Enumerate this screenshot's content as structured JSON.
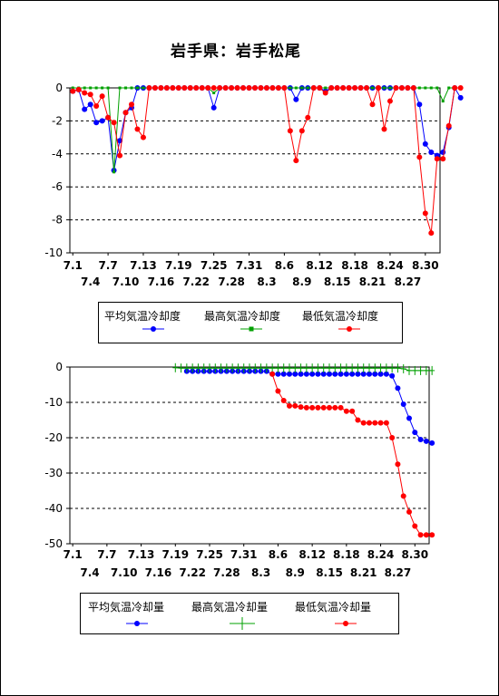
{
  "title": "岩手県：岩手松尾",
  "chart_data": [
    {
      "type": "line",
      "x_tick_labels_row1": [
        "7.1",
        "7.7",
        "7.13",
        "7.19",
        "7.25",
        "7.31",
        "8.6",
        "8.12",
        "8.18",
        "8.24",
        "8.30"
      ],
      "x_tick_labels_row2": [
        "7.4",
        "7.10",
        "7.16",
        "7.22",
        "7.28",
        "8.3",
        "8.9",
        "8.15",
        "8.21",
        "8.27"
      ],
      "ylim": [
        -10,
        0
      ],
      "yticks": [
        0,
        -2,
        -4,
        -6,
        -8,
        -10
      ],
      "grid": "horizontal-dashed",
      "legend_position": "bottom",
      "series": [
        {
          "name": "平均気温冷却度",
          "color": "#0000ff",
          "marker": "circle",
          "values": [
            -0.2,
            -0.1,
            -1.3,
            -1.0,
            -2.1,
            -2.0,
            -1.8,
            -5.0,
            -3.2,
            -1.5,
            -1.2,
            0,
            0,
            0,
            0,
            0,
            0,
            0,
            0,
            0,
            0,
            0,
            0,
            0,
            -1.2,
            0,
            0,
            0,
            0,
            0,
            0,
            0,
            0,
            0,
            0,
            0,
            0,
            0,
            -0.7,
            0,
            0,
            0,
            0,
            -0.2,
            0,
            0,
            0,
            0,
            0,
            0,
            0,
            0,
            0,
            0,
            0,
            0,
            0,
            0,
            0,
            -1.0,
            -3.4,
            -3.9,
            -4.1,
            -3.9,
            -2.4,
            0,
            -0.6
          ]
        },
        {
          "name": "最高気温冷却度",
          "color": "#00a000",
          "marker": "square",
          "values": [
            0,
            0,
            0,
            0,
            0,
            0,
            0,
            -5.1,
            0,
            0,
            0,
            0,
            0,
            0,
            0,
            0,
            0,
            0,
            0,
            0,
            0,
            0,
            0,
            0,
            -0.3,
            0,
            0,
            0,
            0,
            0,
            0,
            0,
            0,
            0,
            0,
            0,
            0,
            0,
            0,
            0,
            0,
            0,
            0,
            0,
            0,
            0,
            0,
            0,
            0,
            0,
            0,
            0,
            0,
            0,
            0,
            0,
            0,
            0,
            0,
            0,
            0,
            0,
            0,
            -0.8,
            0,
            0,
            0
          ]
        },
        {
          "name": "最低気温冷却度",
          "color": "#ff0000",
          "marker": "circle",
          "values": [
            -0.2,
            -0.1,
            -0.3,
            -0.4,
            -1.1,
            -0.5,
            -1.8,
            -2.1,
            -4.1,
            -1.5,
            -1.0,
            -2.5,
            -3.0,
            0,
            0,
            0,
            0,
            0,
            0,
            0,
            0,
            0,
            0,
            0,
            0,
            0,
            0,
            0,
            0,
            0,
            0,
            0,
            0,
            0,
            0,
            0,
            0,
            -2.6,
            -4.4,
            -2.6,
            -1.8,
            0,
            0,
            -0.3,
            0,
            0,
            0,
            0,
            0,
            0,
            0,
            -1.0,
            0,
            -2.5,
            -0.8,
            0,
            0,
            0,
            0,
            -4.2,
            -7.6,
            -8.8,
            -4.3,
            -4.3,
            -2.3,
            0,
            0
          ]
        }
      ]
    },
    {
      "type": "line",
      "x_tick_labels_row1": [
        "7.1",
        "7.7",
        "7.13",
        "7.19",
        "7.25",
        "7.31",
        "8.6",
        "8.12",
        "8.18",
        "8.24",
        "8.30"
      ],
      "x_tick_labels_row2": [
        "7.4",
        "7.10",
        "7.16",
        "7.22",
        "7.28",
        "8.3",
        "8.9",
        "8.15",
        "8.21",
        "8.27"
      ],
      "ylim": [
        -50,
        0
      ],
      "yticks": [
        0,
        -10,
        -20,
        -30,
        -40,
        -50
      ],
      "grid": "horizontal-dashed",
      "legend_position": "bottom",
      "series": [
        {
          "name": "平均気温冷却量",
          "color": "#0000ff",
          "marker": "circle",
          "values": [
            null,
            null,
            null,
            null,
            null,
            null,
            null,
            null,
            null,
            null,
            null,
            null,
            null,
            null,
            null,
            null,
            null,
            null,
            null,
            null,
            -1.2,
            -1.2,
            -1.2,
            -1.2,
            -1.2,
            -1.2,
            -1.2,
            -1.2,
            -1.2,
            -1.2,
            -1.2,
            -1.2,
            -1.2,
            -1.2,
            -1.2,
            -2.0,
            -2.0,
            -2.0,
            -2.0,
            -2.0,
            -2.0,
            -2.0,
            -2.0,
            -2.0,
            -2.0,
            -2.0,
            -2.0,
            -2.0,
            -2.0,
            -2.0,
            -2.0,
            -2.0,
            -2.0,
            -2.0,
            -2.0,
            -2.0,
            -2.5,
            -6.0,
            -10.5,
            -14.5,
            -18.5,
            -20.5,
            -21.0,
            -21.5
          ]
        },
        {
          "name": "最高気温冷却量",
          "color": "#00a000",
          "marker": "plus",
          "values": [
            null,
            null,
            null,
            null,
            null,
            null,
            null,
            null,
            null,
            null,
            null,
            null,
            null,
            null,
            null,
            null,
            null,
            null,
            -0.2,
            -0.3,
            -0.3,
            -0.3,
            -0.3,
            -0.3,
            -0.3,
            -0.3,
            -0.3,
            -0.3,
            -0.3,
            -0.3,
            -0.3,
            -0.3,
            -0.3,
            -0.3,
            -0.3,
            -0.3,
            -0.3,
            -0.3,
            -0.3,
            -0.3,
            -0.3,
            -0.3,
            -0.3,
            -0.3,
            -0.3,
            -0.3,
            -0.3,
            -0.3,
            -0.3,
            -0.3,
            -0.3,
            -0.3,
            -0.3,
            -0.3,
            -0.3,
            -0.3,
            -0.3,
            -0.3,
            -0.5,
            -1.0,
            -1.0,
            -1.0,
            -1.0,
            -1.0
          ]
        },
        {
          "name": "最低気温冷却量",
          "color": "#ff0000",
          "marker": "circle",
          "values": [
            null,
            null,
            null,
            null,
            null,
            null,
            null,
            null,
            null,
            null,
            null,
            null,
            null,
            null,
            null,
            null,
            null,
            null,
            null,
            null,
            null,
            null,
            null,
            null,
            null,
            null,
            null,
            null,
            null,
            null,
            null,
            null,
            null,
            null,
            null,
            -2.0,
            -6.8,
            -9.5,
            -11.0,
            -11.0,
            -11.3,
            -11.5,
            -11.5,
            -11.5,
            -11.5,
            -11.5,
            -11.5,
            -11.5,
            -12.5,
            -12.5,
            -15.0,
            -15.8,
            -15.8,
            -15.8,
            -15.8,
            -15.8,
            -20.0,
            -27.5,
            -36.5,
            -41.0,
            -45.0,
            -47.5,
            -47.5,
            -47.5
          ]
        }
      ]
    }
  ]
}
